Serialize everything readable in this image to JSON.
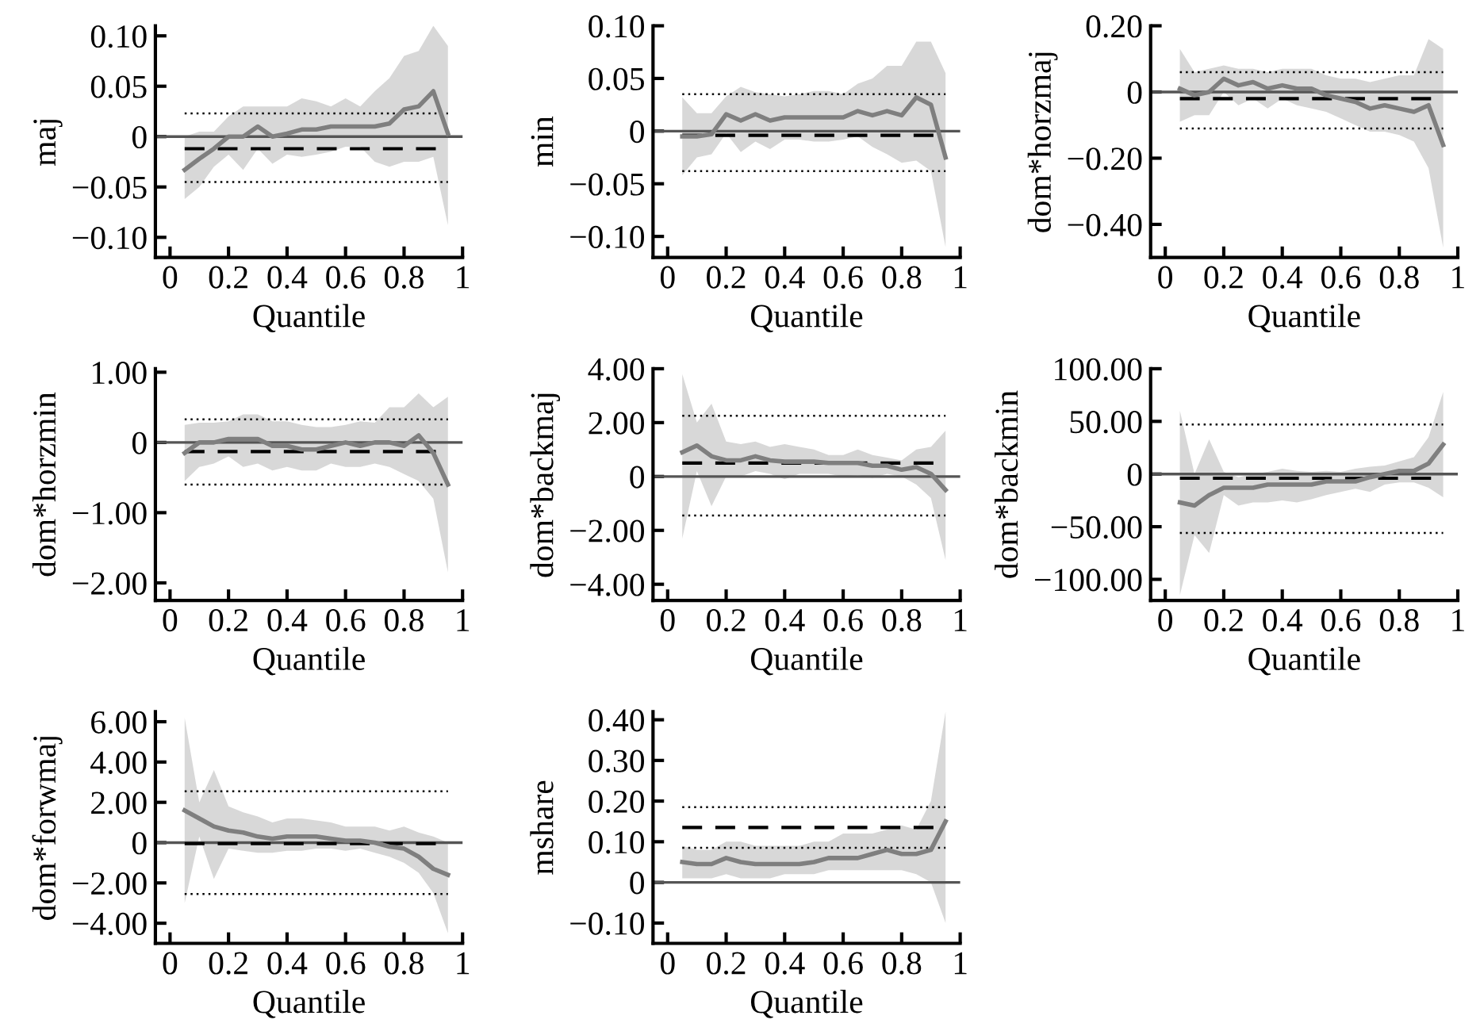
{
  "chart_data": [
    {
      "type": "line",
      "ylabel": "maj",
      "xlabel": "Quantile",
      "x": [
        0.05,
        0.1,
        0.15,
        0.2,
        0.25,
        0.3,
        0.35,
        0.4,
        0.45,
        0.5,
        0.55,
        0.6,
        0.65,
        0.7,
        0.75,
        0.8,
        0.85,
        0.9,
        0.95
      ],
      "xlim": [
        -0.05,
        1
      ],
      "xticks": [
        0,
        0.2,
        0.4,
        0.6,
        0.8,
        1
      ],
      "ylim": [
        -0.12,
        0.11
      ],
      "yticks": [
        {
          "value": -0.1,
          "label": "−0.10"
        },
        {
          "value": -0.05,
          "label": "−0.05"
        },
        0,
        {
          "value": 0.05,
          "label": "0.05"
        },
        {
          "value": 0.1,
          "label": "0.10"
        }
      ],
      "series": [
        {
          "color": "#7f7f7f",
          "values": [
            -0.033,
            -0.022,
            -0.012,
            0.0,
            0.0,
            0.01,
            0.0,
            0.003,
            0.007,
            0.007,
            0.01,
            0.01,
            0.01,
            0.01,
            0.013,
            0.027,
            0.03,
            0.045,
            0.003
          ],
          "upper": [
            0.0,
            0.005,
            0.005,
            0.02,
            0.03,
            0.03,
            0.03,
            0.03,
            0.038,
            0.035,
            0.03,
            0.038,
            0.03,
            0.045,
            0.058,
            0.08,
            0.085,
            0.11,
            0.09
          ],
          "lower": [
            -0.062,
            -0.05,
            -0.03,
            -0.018,
            -0.033,
            -0.012,
            -0.027,
            -0.018,
            -0.02,
            -0.018,
            -0.015,
            -0.01,
            -0.01,
            -0.025,
            -0.03,
            -0.025,
            -0.025,
            -0.02,
            -0.088
          ]
        }
      ],
      "ref_lines": [
        {
          "axis": "y",
          "value": 0,
          "color": "#555555",
          "line_style": "solid"
        },
        {
          "axis": "y",
          "value": -0.012,
          "color": "#000000",
          "line_style": "dashed"
        },
        {
          "axis": "y",
          "value": 0.023,
          "color": "#000000",
          "line_style": "dotted"
        },
        {
          "axis": "y",
          "value": -0.045,
          "color": "#000000",
          "line_style": "dotted"
        }
      ]
    },
    {
      "type": "line",
      "ylabel": "min",
      "xlabel": "Quantile",
      "x": [
        0.05,
        0.1,
        0.15,
        0.2,
        0.25,
        0.3,
        0.35,
        0.4,
        0.45,
        0.5,
        0.55,
        0.6,
        0.65,
        0.7,
        0.75,
        0.8,
        0.85,
        0.9,
        0.95
      ],
      "xlim": [
        -0.05,
        1
      ],
      "xticks": [
        0,
        0.2,
        0.4,
        0.6,
        0.8,
        1
      ],
      "ylim": [
        -0.12,
        0.1
      ],
      "yticks": [
        {
          "value": -0.1,
          "label": "−0.10"
        },
        {
          "value": -0.05,
          "label": "−0.05"
        },
        0,
        {
          "value": 0.05,
          "label": "0.05"
        },
        {
          "value": 0.1,
          "label": "0.10"
        }
      ],
      "series": [
        {
          "color": "#7f7f7f",
          "values": [
            -0.005,
            -0.005,
            -0.003,
            0.016,
            0.01,
            0.016,
            0.01,
            0.013,
            0.013,
            0.013,
            0.013,
            0.013,
            0.019,
            0.015,
            0.019,
            0.015,
            0.032,
            0.025,
            -0.025
          ],
          "upper": [
            0.032,
            0.017,
            0.017,
            0.033,
            0.042,
            0.037,
            0.035,
            0.033,
            0.035,
            0.038,
            0.038,
            0.035,
            0.045,
            0.05,
            0.062,
            0.062,
            0.085,
            0.085,
            0.055
          ],
          "lower": [
            -0.042,
            -0.025,
            -0.022,
            -0.002,
            -0.02,
            -0.01,
            -0.017,
            -0.008,
            -0.008,
            -0.01,
            -0.01,
            -0.008,
            -0.005,
            -0.015,
            -0.022,
            -0.03,
            -0.028,
            -0.038,
            -0.11
          ]
        }
      ],
      "ref_lines": [
        {
          "axis": "y",
          "value": 0,
          "color": "#555555",
          "line_style": "solid"
        },
        {
          "axis": "y",
          "value": -0.004,
          "color": "#000000",
          "line_style": "dashed"
        },
        {
          "axis": "y",
          "value": 0.035,
          "color": "#000000",
          "line_style": "dotted"
        },
        {
          "axis": "y",
          "value": -0.038,
          "color": "#000000",
          "line_style": "dotted"
        }
      ]
    },
    {
      "type": "line",
      "ylabel": "dom*horzmaj",
      "xlabel": "Quantile",
      "x": [
        0.05,
        0.1,
        0.15,
        0.2,
        0.25,
        0.3,
        0.35,
        0.4,
        0.45,
        0.5,
        0.55,
        0.6,
        0.65,
        0.7,
        0.75,
        0.8,
        0.85,
        0.9,
        0.95
      ],
      "xlim": [
        -0.05,
        1
      ],
      "xticks": [
        0,
        0.2,
        0.4,
        0.6,
        0.8,
        1
      ],
      "ylim": [
        -0.5,
        0.2
      ],
      "yticks": [
        {
          "value": -0.4,
          "label": "−0.40"
        },
        {
          "value": -0.2,
          "label": "−0.20"
        },
        0,
        {
          "value": 0.2,
          "label": "0.20"
        }
      ],
      "series": [
        {
          "color": "#7f7f7f",
          "values": [
            0.01,
            -0.01,
            0.0,
            0.04,
            0.02,
            0.03,
            0.01,
            0.02,
            0.01,
            0.01,
            -0.01,
            -0.02,
            -0.03,
            -0.05,
            -0.04,
            -0.05,
            -0.06,
            -0.04,
            -0.16
          ],
          "upper": [
            0.13,
            0.06,
            0.07,
            0.08,
            0.07,
            0.07,
            0.06,
            0.07,
            0.07,
            0.07,
            0.05,
            0.04,
            0.04,
            0.03,
            0.04,
            0.05,
            0.05,
            0.16,
            0.13
          ],
          "lower": [
            -0.09,
            -0.07,
            -0.07,
            0.0,
            -0.04,
            -0.02,
            -0.05,
            -0.02,
            -0.04,
            -0.05,
            -0.06,
            -0.08,
            -0.1,
            -0.12,
            -0.12,
            -0.13,
            -0.15,
            -0.23,
            -0.47
          ]
        }
      ],
      "ref_lines": [
        {
          "axis": "y",
          "value": 0,
          "color": "#555555",
          "line_style": "solid"
        },
        {
          "axis": "y",
          "value": -0.02,
          "color": "#000000",
          "line_style": "dashed"
        },
        {
          "axis": "y",
          "value": 0.06,
          "color": "#000000",
          "line_style": "dotted"
        },
        {
          "axis": "y",
          "value": -0.11,
          "color": "#000000",
          "line_style": "dotted"
        }
      ]
    },
    {
      "type": "line",
      "ylabel": "dom*horzmin",
      "xlabel": "Quantile",
      "x": [
        0.05,
        0.1,
        0.15,
        0.2,
        0.25,
        0.3,
        0.35,
        0.4,
        0.45,
        0.5,
        0.55,
        0.6,
        0.65,
        0.7,
        0.75,
        0.8,
        0.85,
        0.9,
        0.95
      ],
      "xlim": [
        -0.05,
        1
      ],
      "xticks": [
        0,
        0.2,
        0.4,
        0.6,
        0.8,
        1
      ],
      "ylim": [
        -2.25,
        1.05
      ],
      "yticks": [
        {
          "value": -2,
          "label": "−2.00"
        },
        {
          "value": -1,
          "label": "−1.00"
        },
        0,
        {
          "value": 1,
          "label": "1.00"
        }
      ],
      "series": [
        {
          "color": "#7f7f7f",
          "values": [
            -0.15,
            0.0,
            0.0,
            0.05,
            0.05,
            0.05,
            -0.05,
            -0.05,
            -0.1,
            -0.1,
            -0.05,
            0.0,
            -0.05,
            0.0,
            0.0,
            -0.05,
            0.1,
            -0.15,
            -0.6
          ],
          "upper": [
            0.25,
            0.28,
            0.28,
            0.3,
            0.4,
            0.4,
            0.3,
            0.3,
            0.25,
            0.22,
            0.22,
            0.25,
            0.3,
            0.28,
            0.5,
            0.5,
            0.7,
            0.5,
            0.65
          ],
          "lower": [
            -0.55,
            -0.35,
            -0.3,
            -0.2,
            -0.35,
            -0.3,
            -0.4,
            -0.35,
            -0.4,
            -0.4,
            -0.3,
            -0.35,
            -0.35,
            -0.3,
            -0.35,
            -0.45,
            -0.55,
            -0.8,
            -1.85
          ]
        }
      ],
      "ref_lines": [
        {
          "axis": "y",
          "value": 0,
          "color": "#555555",
          "line_style": "solid"
        },
        {
          "axis": "y",
          "value": -0.13,
          "color": "#000000",
          "line_style": "dashed"
        },
        {
          "axis": "y",
          "value": 0.33,
          "color": "#000000",
          "line_style": "dotted"
        },
        {
          "axis": "y",
          "value": -0.6,
          "color": "#000000",
          "line_style": "dotted"
        }
      ]
    },
    {
      "type": "line",
      "ylabel": "dom*backmaj",
      "xlabel": "Quantile",
      "x": [
        0.05,
        0.1,
        0.15,
        0.2,
        0.25,
        0.3,
        0.35,
        0.4,
        0.45,
        0.5,
        0.55,
        0.6,
        0.65,
        0.7,
        0.75,
        0.8,
        0.85,
        0.9,
        0.95
      ],
      "xlim": [
        -0.05,
        1
      ],
      "xticks": [
        0,
        0.2,
        0.4,
        0.6,
        0.8,
        1
      ],
      "ylim": [
        -4.6,
        4.0
      ],
      "yticks": [
        {
          "value": -4,
          "label": "−4.00"
        },
        {
          "value": -2,
          "label": "−2.00"
        },
        0,
        {
          "value": 2,
          "label": "2.00"
        },
        {
          "value": 4,
          "label": "4.00"
        }
      ],
      "series": [
        {
          "color": "#7f7f7f",
          "values": [
            0.9,
            1.15,
            0.75,
            0.6,
            0.6,
            0.75,
            0.6,
            0.55,
            0.55,
            0.55,
            0.5,
            0.5,
            0.5,
            0.4,
            0.4,
            0.25,
            0.35,
            0.1,
            -0.5
          ],
          "upper": [
            3.8,
            2.0,
            2.7,
            1.3,
            1.2,
            1.3,
            1.1,
            1.2,
            1.1,
            1.0,
            0.8,
            0.8,
            1.0,
            0.8,
            0.7,
            0.6,
            1.0,
            1.1,
            1.7
          ],
          "lower": [
            -2.3,
            0.2,
            -1.1,
            0.0,
            0.0,
            0.2,
            0.1,
            -0.1,
            0.1,
            0.1,
            0.1,
            0.0,
            0.05,
            -0.05,
            0.1,
            0.0,
            -0.3,
            -0.8,
            -3.1
          ]
        }
      ],
      "ref_lines": [
        {
          "axis": "y",
          "value": 0,
          "color": "#555555",
          "line_style": "solid"
        },
        {
          "axis": "y",
          "value": 0.5,
          "color": "#000000",
          "line_style": "dashed"
        },
        {
          "axis": "y",
          "value": 2.25,
          "color": "#000000",
          "line_style": "dotted"
        },
        {
          "axis": "y",
          "value": -1.45,
          "color": "#000000",
          "line_style": "dotted"
        }
      ]
    },
    {
      "type": "line",
      "ylabel": "dom*backmin",
      "xlabel": "Quantile",
      "x": [
        0.05,
        0.1,
        0.15,
        0.2,
        0.25,
        0.3,
        0.35,
        0.4,
        0.45,
        0.5,
        0.55,
        0.6,
        0.65,
        0.7,
        0.75,
        0.8,
        0.85,
        0.9,
        0.95
      ],
      "xlim": [
        -0.05,
        1
      ],
      "xticks": [
        0,
        0.2,
        0.4,
        0.6,
        0.8,
        1
      ],
      "ylim": [
        -120,
        100
      ],
      "yticks": [
        {
          "value": -100,
          "label": "−100.00"
        },
        {
          "value": -50,
          "label": "−50.00"
        },
        0,
        {
          "value": 50,
          "label": "50.00"
        },
        {
          "value": 100,
          "label": "100.00"
        }
      ],
      "series": [
        {
          "color": "#7f7f7f",
          "values": [
            -27,
            -30,
            -20,
            -13,
            -13,
            -13,
            -10,
            -10,
            -10,
            -10,
            -7,
            -7,
            -7,
            -3,
            0,
            3,
            3,
            10,
            28
          ],
          "upper": [
            60,
            0,
            33,
            2,
            -3,
            0,
            2,
            5,
            3,
            2,
            3,
            2,
            5,
            7,
            8,
            12,
            16,
            35,
            78
          ],
          "lower": [
            -115,
            -58,
            -75,
            -20,
            -30,
            -27,
            -27,
            -25,
            -27,
            -24,
            -20,
            -17,
            -14,
            -17,
            -10,
            -8,
            -8,
            -13,
            -22
          ]
        }
      ],
      "ref_lines": [
        {
          "axis": "y",
          "value": 0,
          "color": "#555555",
          "line_style": "solid"
        },
        {
          "axis": "y",
          "value": -4,
          "color": "#000000",
          "line_style": "dashed"
        },
        {
          "axis": "y",
          "value": 47,
          "color": "#000000",
          "line_style": "dotted"
        },
        {
          "axis": "y",
          "value": -56,
          "color": "#000000",
          "line_style": "dotted"
        }
      ]
    },
    {
      "type": "line",
      "ylabel": "dom*forwmaj",
      "xlabel": "Quantile",
      "x": [
        0.05,
        0.1,
        0.15,
        0.2,
        0.25,
        0.3,
        0.35,
        0.4,
        0.45,
        0.5,
        0.55,
        0.6,
        0.65,
        0.7,
        0.75,
        0.8,
        0.85,
        0.9,
        0.95
      ],
      "xlim": [
        -0.05,
        1
      ],
      "xticks": [
        0,
        0.2,
        0.4,
        0.6,
        0.8,
        1
      ],
      "ylim": [
        -5,
        6.5
      ],
      "yticks": [
        {
          "value": -4,
          "label": "−4.00"
        },
        {
          "value": -2,
          "label": "−2.00"
        },
        0,
        {
          "value": 2,
          "label": "2.00"
        },
        {
          "value": 4,
          "label": "4.00"
        },
        {
          "value": 6,
          "label": "6.00"
        }
      ],
      "series": [
        {
          "color": "#7f7f7f",
          "values": [
            1.6,
            1.2,
            0.8,
            0.6,
            0.5,
            0.3,
            0.2,
            0.3,
            0.3,
            0.3,
            0.2,
            0.1,
            0.1,
            0.0,
            -0.2,
            -0.3,
            -0.7,
            -1.3,
            -1.6
          ],
          "upper": [
            6.2,
            2.0,
            3.6,
            1.8,
            1.5,
            1.3,
            1.0,
            1.2,
            1.2,
            1.1,
            1.0,
            0.8,
            0.8,
            0.8,
            0.6,
            0.8,
            0.5,
            0.3,
            0.0
          ],
          "lower": [
            -3.0,
            0.3,
            -1.8,
            -0.3,
            -0.4,
            -0.5,
            -0.5,
            -0.4,
            -0.4,
            -0.3,
            -0.3,
            -0.4,
            -0.3,
            -0.5,
            -0.7,
            -1.0,
            -1.5,
            -2.5,
            -4.5
          ]
        }
      ],
      "ref_lines": [
        {
          "axis": "y",
          "value": 0,
          "color": "#555555",
          "line_style": "solid"
        },
        {
          "axis": "y",
          "value": -0.05,
          "color": "#000000",
          "line_style": "dashed"
        },
        {
          "axis": "y",
          "value": 2.55,
          "color": "#000000",
          "line_style": "dotted"
        },
        {
          "axis": "y",
          "value": -2.55,
          "color": "#000000",
          "line_style": "dotted"
        }
      ]
    },
    {
      "type": "line",
      "ylabel": "mshare",
      "xlabel": "Quantile",
      "x": [
        0.05,
        0.1,
        0.15,
        0.2,
        0.25,
        0.3,
        0.35,
        0.4,
        0.45,
        0.5,
        0.55,
        0.6,
        0.65,
        0.7,
        0.75,
        0.8,
        0.85,
        0.9,
        0.95
      ],
      "xlim": [
        -0.05,
        1
      ],
      "xticks": [
        0,
        0.2,
        0.4,
        0.6,
        0.8,
        1
      ],
      "ylim": [
        -0.15,
        0.42
      ],
      "yticks": [
        {
          "value": -0.1,
          "label": "−0.10"
        },
        0,
        {
          "value": 0.1,
          "label": "0.10"
        },
        {
          "value": 0.2,
          "label": "0.20"
        },
        {
          "value": 0.3,
          "label": "0.30"
        },
        {
          "value": 0.4,
          "label": "0.40"
        }
      ],
      "series": [
        {
          "color": "#7f7f7f",
          "values": [
            0.05,
            0.045,
            0.045,
            0.06,
            0.05,
            0.045,
            0.045,
            0.045,
            0.045,
            0.05,
            0.06,
            0.06,
            0.06,
            0.07,
            0.08,
            0.07,
            0.07,
            0.08,
            0.15
          ],
          "upper": [
            0.09,
            0.08,
            0.08,
            0.1,
            0.1,
            0.09,
            0.09,
            0.09,
            0.09,
            0.1,
            0.1,
            0.12,
            0.12,
            0.12,
            0.13,
            0.14,
            0.13,
            0.2,
            0.42
          ],
          "lower": [
            0.01,
            0.01,
            0.01,
            0.02,
            0.01,
            0.01,
            0.01,
            0.02,
            0.02,
            0.02,
            0.03,
            0.03,
            0.03,
            0.03,
            0.03,
            0.03,
            0.02,
            0.0,
            -0.1
          ]
        }
      ],
      "ref_lines": [
        {
          "axis": "y",
          "value": 0,
          "color": "#555555",
          "line_style": "solid"
        },
        {
          "axis": "y",
          "value": 0.135,
          "color": "#000000",
          "line_style": "dashed"
        },
        {
          "axis": "y",
          "value": 0.185,
          "color": "#000000",
          "line_style": "dotted"
        },
        {
          "axis": "y",
          "value": 0.085,
          "color": "#000000",
          "line_style": "dotted"
        }
      ]
    }
  ]
}
